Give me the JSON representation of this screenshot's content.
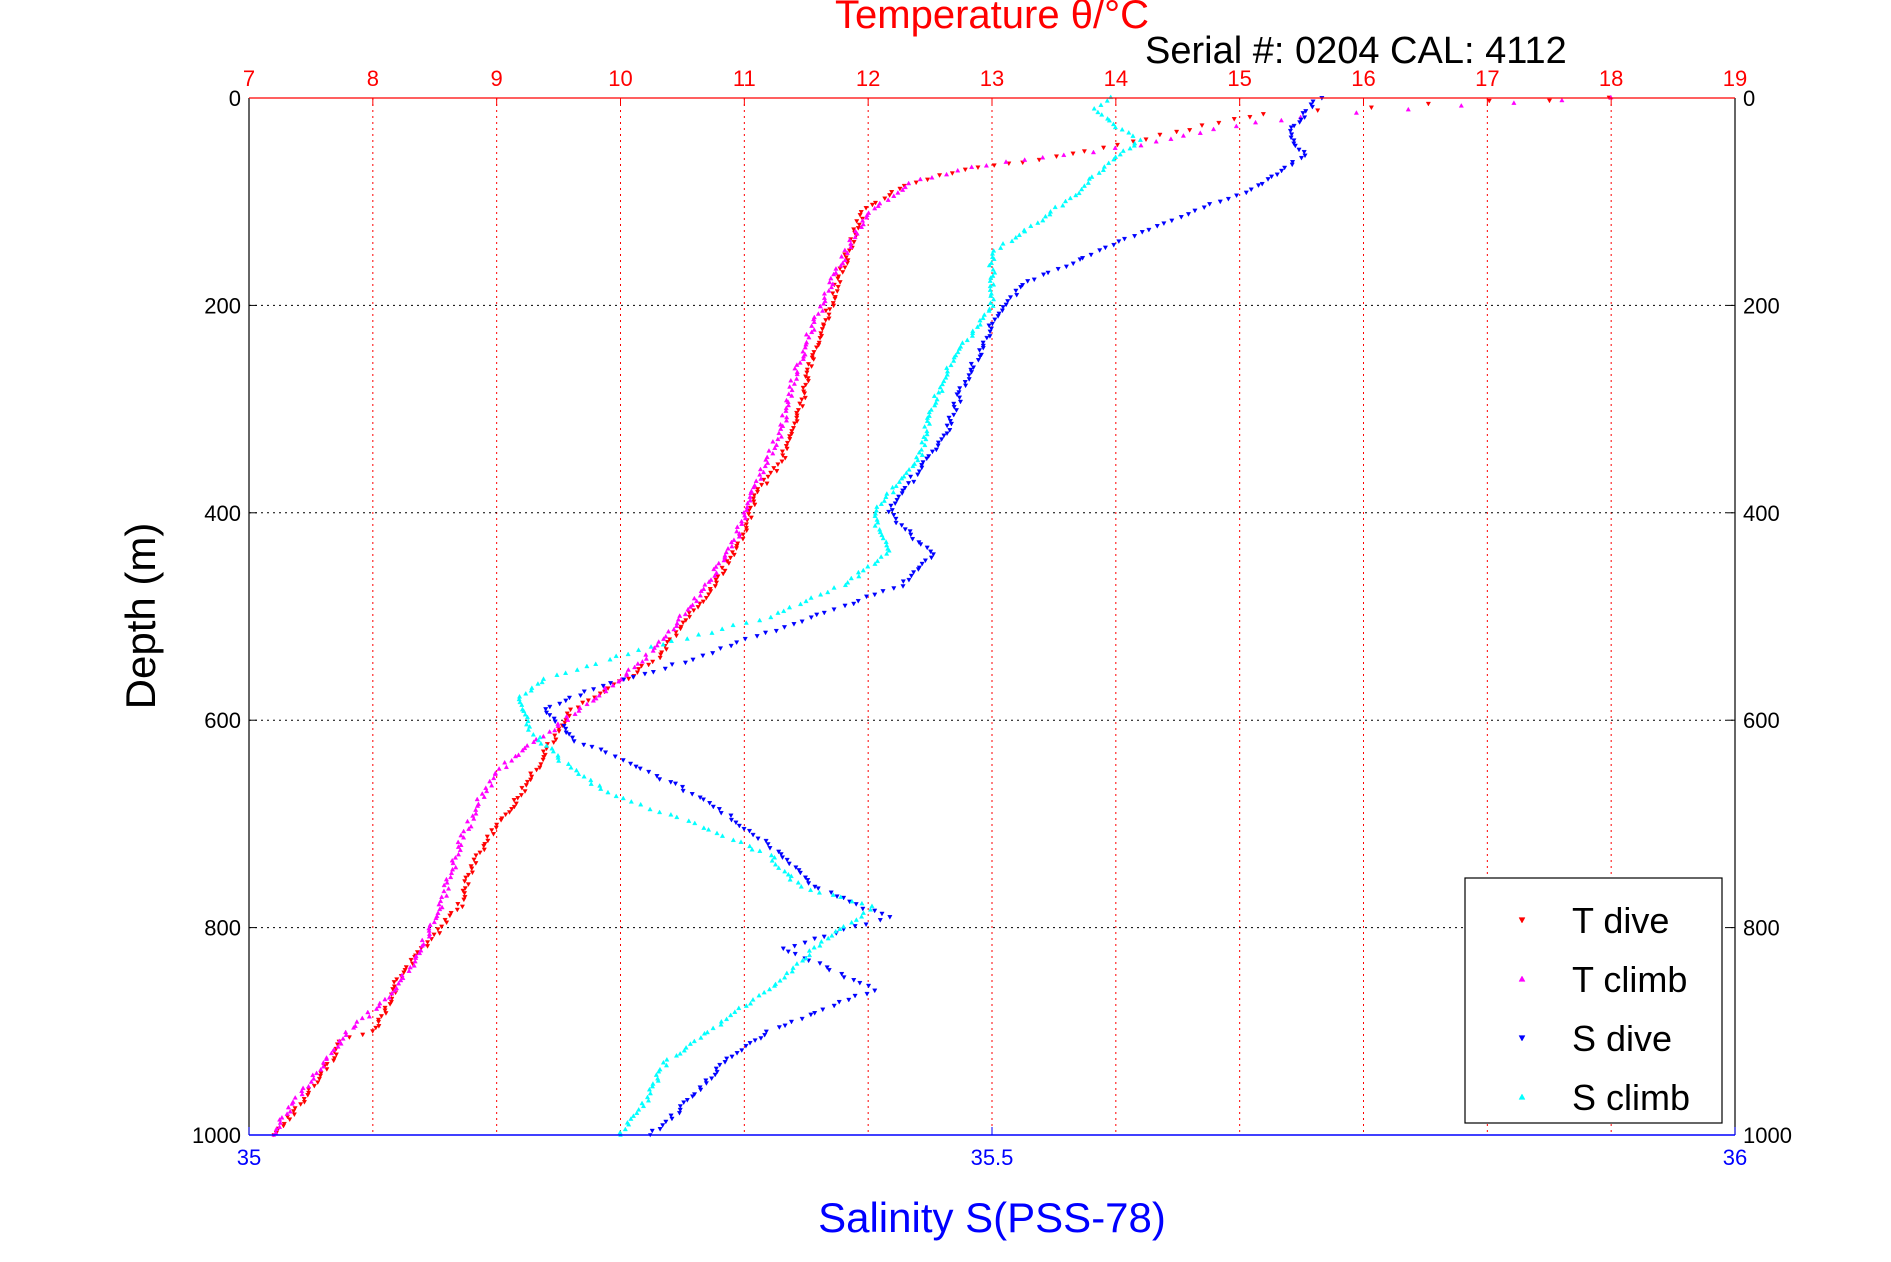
{
  "chart_data": {
    "type": "scatter",
    "title": "Temperature θ/°C",
    "subtitle": "Serial #: 0204  CAL: 4112",
    "ylabel": "Depth (m)",
    "xlabel_bottom": "Salinity S(PSS-78)",
    "ylim": [
      0,
      1000
    ],
    "y_reversed": true,
    "y_ticks": [
      0,
      200,
      400,
      600,
      800,
      1000
    ],
    "x_top": {
      "label": "Temperature θ/°C",
      "lim": [
        7,
        19
      ],
      "ticks": [
        7,
        8,
        9,
        10,
        11,
        12,
        13,
        14,
        15,
        16,
        17,
        18,
        19
      ]
    },
    "x_bottom": {
      "label": "Salinity S(PSS-78)",
      "lim": [
        35,
        36
      ],
      "ticks": [
        "35",
        "35.5",
        "36"
      ]
    },
    "grid": true,
    "legend_position": "bottom-right",
    "colors": {
      "t_dive": "#ff0000",
      "t_climb": "#ff00ff",
      "s_dive": "#0000ff",
      "s_climb": "#00ffff",
      "top_axis": "#ff0000",
      "bottom_axis": "#0000ff"
    },
    "series": [
      {
        "name": "T dive",
        "axis": "top",
        "marker": "triangle-down",
        "color": "#ff0000",
        "points": [
          [
            18,
            0
          ],
          [
            16.5,
            5
          ],
          [
            15.2,
            15
          ],
          [
            14.6,
            30
          ],
          [
            14,
            45
          ],
          [
            13.4,
            60
          ],
          [
            13,
            65
          ],
          [
            12.7,
            72
          ],
          [
            12.3,
            85
          ],
          [
            11.95,
            110
          ],
          [
            11.85,
            145
          ],
          [
            11.75,
            180
          ],
          [
            11.7,
            200
          ],
          [
            11.55,
            250
          ],
          [
            11.45,
            300
          ],
          [
            11.3,
            350
          ],
          [
            11.1,
            380
          ],
          [
            11.0,
            420
          ],
          [
            10.75,
            470
          ],
          [
            10.55,
            500
          ],
          [
            10.3,
            540
          ],
          [
            10.05,
            560
          ],
          [
            9.6,
            590
          ],
          [
            9.4,
            630
          ],
          [
            9.25,
            660
          ],
          [
            9.15,
            680
          ],
          [
            9.0,
            700
          ],
          [
            8.8,
            740
          ],
          [
            8.7,
            780
          ],
          [
            8.4,
            820
          ],
          [
            8.2,
            850
          ],
          [
            8.1,
            880
          ],
          [
            8.0,
            900
          ],
          [
            7.75,
            910
          ],
          [
            7.6,
            940
          ],
          [
            7.35,
            980
          ],
          [
            7.2,
            1000
          ]
        ]
      },
      {
        "name": "T climb",
        "axis": "top",
        "marker": "triangle-up",
        "color": "#ff00ff",
        "points": [
          [
            18,
            0
          ],
          [
            16.8,
            8
          ],
          [
            15.5,
            18
          ],
          [
            14.8,
            30
          ],
          [
            14.2,
            45
          ],
          [
            13.6,
            55
          ],
          [
            13.1,
            62
          ],
          [
            12.7,
            70
          ],
          [
            12.35,
            82
          ],
          [
            12.0,
            110
          ],
          [
            11.85,
            140
          ],
          [
            11.7,
            180
          ],
          [
            11.55,
            220
          ],
          [
            11.4,
            270
          ],
          [
            11.3,
            320
          ],
          [
            11.1,
            370
          ],
          [
            10.95,
            420
          ],
          [
            10.7,
            470
          ],
          [
            10.5,
            500
          ],
          [
            10.2,
            540
          ],
          [
            10.0,
            560
          ],
          [
            9.55,
            600
          ],
          [
            9.2,
            630
          ],
          [
            9.0,
            650
          ],
          [
            8.85,
            680
          ],
          [
            8.7,
            720
          ],
          [
            8.6,
            760
          ],
          [
            8.55,
            780
          ],
          [
            8.35,
            830
          ],
          [
            8.1,
            870
          ],
          [
            7.8,
            900
          ],
          [
            7.55,
            940
          ],
          [
            7.3,
            980
          ],
          [
            7.2,
            1000
          ]
        ]
      },
      {
        "name": "S dive",
        "axis": "bottom",
        "marker": "triangle-down",
        "color": "#0000ff",
        "points": [
          [
            35.72,
            0
          ],
          [
            35.71,
            15
          ],
          [
            35.7,
            35
          ],
          [
            35.71,
            55
          ],
          [
            35.68,
            85
          ],
          [
            35.6,
            130
          ],
          [
            35.52,
            180
          ],
          [
            35.5,
            220
          ],
          [
            35.48,
            280
          ],
          [
            35.47,
            320
          ],
          [
            35.45,
            360
          ],
          [
            35.43,
            400
          ],
          [
            35.46,
            440
          ],
          [
            35.44,
            470
          ],
          [
            35.4,
            490
          ],
          [
            35.36,
            510
          ],
          [
            35.28,
            550
          ],
          [
            35.23,
            570
          ],
          [
            35.2,
            590
          ],
          [
            35.22,
            620
          ],
          [
            35.27,
            650
          ],
          [
            35.31,
            680
          ],
          [
            35.35,
            720
          ],
          [
            35.38,
            760
          ],
          [
            35.43,
            790
          ],
          [
            35.36,
            820
          ],
          [
            35.42,
            860
          ],
          [
            35.35,
            900
          ],
          [
            35.32,
            930
          ],
          [
            35.3,
            960
          ],
          [
            35.28,
            990
          ],
          [
            35.27,
            1000
          ]
        ]
      },
      {
        "name": "S climb",
        "axis": "bottom",
        "marker": "triangle-up",
        "color": "#00ffff",
        "points": [
          [
            35.58,
            0
          ],
          [
            35.57,
            10
          ],
          [
            35.58,
            25
          ],
          [
            35.6,
            40
          ],
          [
            35.58,
            60
          ],
          [
            35.55,
            100
          ],
          [
            35.5,
            150
          ],
          [
            35.5,
            200
          ],
          [
            35.47,
            260
          ],
          [
            35.46,
            300
          ],
          [
            35.45,
            350
          ],
          [
            35.42,
            400
          ],
          [
            35.43,
            440
          ],
          [
            35.4,
            470
          ],
          [
            35.35,
            500
          ],
          [
            35.27,
            530
          ],
          [
            35.2,
            560
          ],
          [
            35.18,
            580
          ],
          [
            35.19,
            610
          ],
          [
            35.21,
            640
          ],
          [
            35.24,
            670
          ],
          [
            35.3,
            700
          ],
          [
            35.35,
            730
          ],
          [
            35.37,
            760
          ],
          [
            35.42,
            780
          ],
          [
            35.38,
            820
          ],
          [
            35.35,
            860
          ],
          [
            35.31,
            900
          ],
          [
            35.28,
            930
          ],
          [
            35.27,
            960
          ],
          [
            35.25,
            1000
          ]
        ]
      }
    ]
  }
}
